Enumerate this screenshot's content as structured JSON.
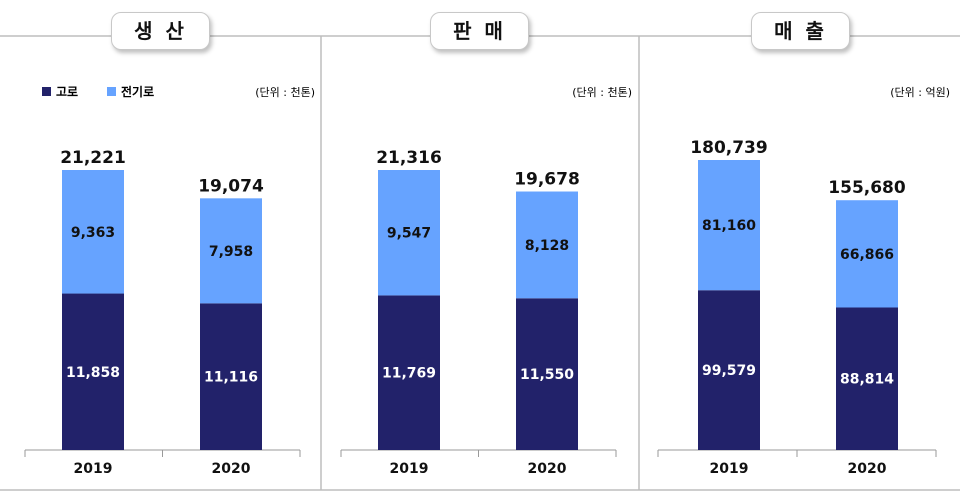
{
  "legend": {
    "series1": "고로",
    "series2": "전기로"
  },
  "colors": {
    "series1": "#22226a",
    "series2": "#66a3ff"
  },
  "chart_data": [
    {
      "type": "bar",
      "title": "생 산",
      "unit_note": "(단위 : 천톤)",
      "categories": [
        "2019",
        "2020"
      ],
      "series": [
        {
          "name": "고로",
          "values": [
            11858,
            11116
          ],
          "labels": [
            "11,858",
            "11,116"
          ]
        },
        {
          "name": "전기로",
          "values": [
            9363,
            7958
          ],
          "labels": [
            "9,363",
            "7,958"
          ]
        }
      ],
      "totals": [
        21221,
        19074
      ],
      "total_labels": [
        "21,221",
        "19,074"
      ],
      "ylim": [
        0,
        26000
      ]
    },
    {
      "type": "bar",
      "title": "판 매",
      "unit_note": "(단위 : 천톤)",
      "categories": [
        "2019",
        "2020"
      ],
      "series": [
        {
          "name": "고로",
          "values": [
            11769,
            11550
          ],
          "labels": [
            "11,769",
            "11,550"
          ]
        },
        {
          "name": "전기로",
          "values": [
            9547,
            8128
          ],
          "labels": [
            "9,547",
            "8,128"
          ]
        }
      ],
      "totals": [
        21316,
        19678
      ],
      "total_labels": [
        "21,316",
        "19,678"
      ],
      "ylim": [
        0,
        26000
      ]
    },
    {
      "type": "bar",
      "title": "매 출",
      "unit_note": "(단위 : 억원)",
      "categories": [
        "2019",
        "2020"
      ],
      "series": [
        {
          "name": "고로",
          "values": [
            99579,
            88814
          ],
          "labels": [
            "99,579",
            "88,814"
          ]
        },
        {
          "name": "전기로",
          "values": [
            81160,
            66866
          ],
          "labels": [
            "81,160",
            "66,866"
          ]
        }
      ],
      "totals": [
        180739,
        155680
      ],
      "total_labels": [
        "180,739",
        "155,680"
      ],
      "ylim": [
        0,
        215000
      ]
    }
  ]
}
